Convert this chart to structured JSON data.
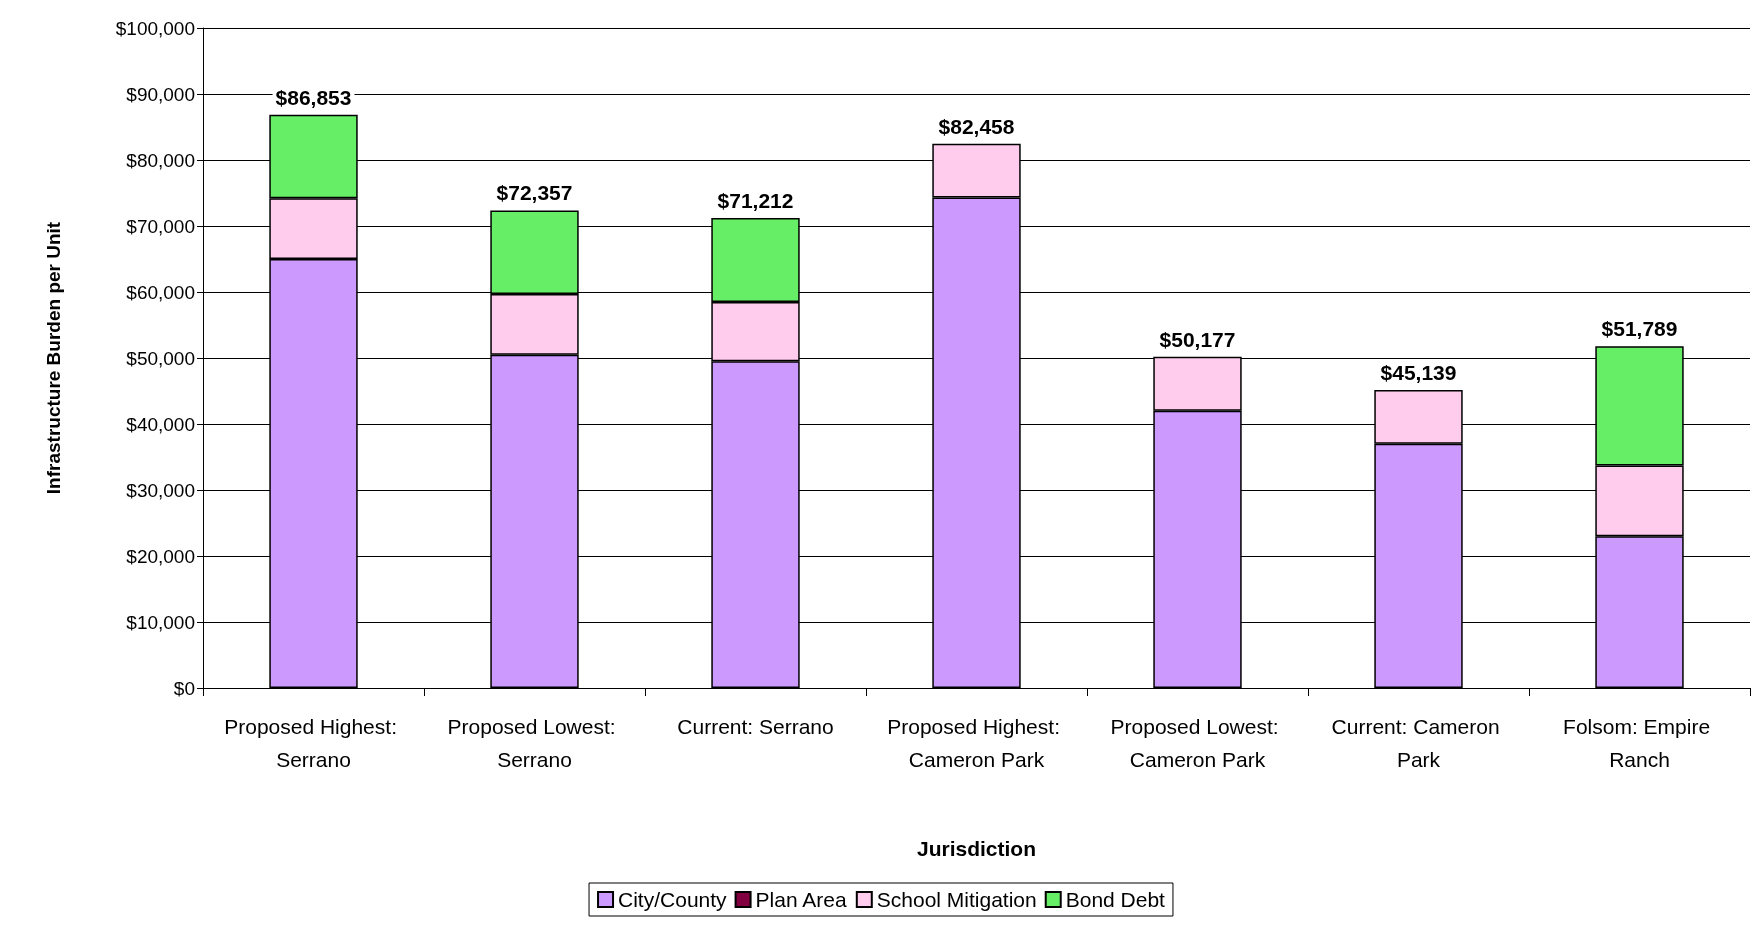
{
  "chart_data": {
    "type": "bar",
    "stacked": true,
    "xlabel": "Jurisdiction",
    "ylabel": "Infrastructure Burden per Unit",
    "categories": [
      "Proposed Highest: Serrano",
      "Proposed Lowest: Serrano",
      "Current: Serrano",
      "Proposed Highest: Cameron Park",
      "Proposed Lowest: Cameron Park",
      "Current: Cameron Park",
      "Folsom: Empire Ranch"
    ],
    "series": [
      {
        "name": "City/County",
        "color": "#cc99ff",
        "values": [
          65000,
          50500,
          49500,
          74300,
          42000,
          37000,
          23000
        ]
      },
      {
        "name": "Plan Area",
        "color": "#800040",
        "values": [
          null,
          null,
          null,
          null,
          null,
          null,
          null
        ]
      },
      {
        "name": "School Mitigation",
        "color": "#ffccee",
        "values": [
          9200,
          9200,
          9000,
          8158,
          8177,
          8139,
          10700
        ]
      },
      {
        "name": "Bond Debt",
        "color": "#66ee66",
        "values": [
          12653,
          12657,
          12712,
          null,
          null,
          null,
          18089
        ]
      }
    ],
    "totals": [
      "$86,853",
      "$72,357",
      "$71,212",
      "$82,458",
      "$50,177",
      "$45,139",
      "$51,789"
    ],
    "ylim": [
      0,
      100000
    ],
    "yticks": [
      {
        "value": 0,
        "label": "$0"
      },
      {
        "value": 10000,
        "label": "$10,000"
      },
      {
        "value": 20000,
        "label": "$20,000"
      },
      {
        "value": 30000,
        "label": "$30,000"
      },
      {
        "value": 40000,
        "label": "$40,000"
      },
      {
        "value": 50000,
        "label": "$50,000"
      },
      {
        "value": 60000,
        "label": "$60,000"
      },
      {
        "value": 70000,
        "label": "$70,000"
      },
      {
        "value": 80000,
        "label": "$80,000"
      },
      {
        "value": 90000,
        "label": "$90,000"
      },
      {
        "value": 100000,
        "label": "$100,000"
      }
    ],
    "grid": "y",
    "legend": "bottom"
  }
}
